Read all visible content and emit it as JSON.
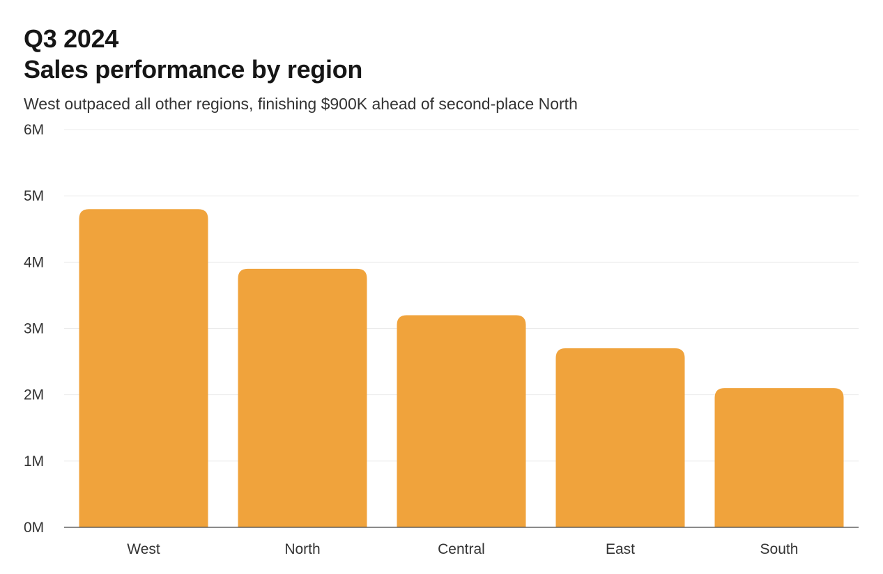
{
  "header": {
    "title_line1": "Q3 2024",
    "title_line2": "Sales performance by region",
    "subtitle": "West outpaced all other regions, finishing $900K ahead of second-place North"
  },
  "chart_data": {
    "type": "bar",
    "categories": [
      "West",
      "North",
      "Central",
      "East",
      "South"
    ],
    "values": [
      4800000,
      3900000,
      3200000,
      2700000,
      2100000
    ],
    "ylim": [
      0,
      6000000
    ],
    "yticks": [
      0,
      1000000,
      2000000,
      3000000,
      4000000,
      5000000,
      6000000
    ],
    "ytick_labels": [
      "0M",
      "1M",
      "2M",
      "3M",
      "4M",
      "5M",
      "6M"
    ],
    "grid": true,
    "legend": "none",
    "bar_color": "#F0A33C"
  }
}
